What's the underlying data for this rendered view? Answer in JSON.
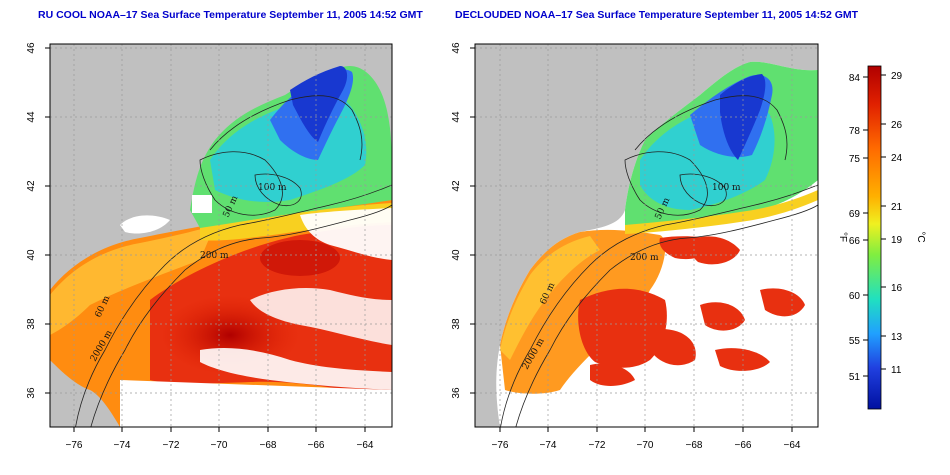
{
  "panels": [
    {
      "title": "RU COOL NOAA–17 Sea Surface Temperature September 11, 2005 14:52 GMT",
      "contour_labels": [
        "100 m",
        "50 m",
        "200 m",
        "60 m",
        "2000 m"
      ]
    },
    {
      "title": "DECLOUDED NOAA–17 Sea Surface Temperature September 11, 2005 14:52 GMT",
      "contour_labels": [
        "100 m",
        "50 m",
        "200 m",
        "60 m",
        "2000 m"
      ]
    }
  ],
  "axes": {
    "x_ticks": [
      "−76",
      "−74",
      "−72",
      "−70",
      "−68",
      "−66",
      "−64"
    ],
    "y_ticks": [
      "46",
      "44",
      "42",
      "40",
      "38",
      "36"
    ],
    "lon_range": [
      -77,
      -63
    ],
    "lat_range": [
      35,
      46
    ]
  },
  "colorbar": {
    "fahrenheit_label": "°F",
    "celsius_label": "°C",
    "fahrenheit_ticks": [
      "84",
      "78",
      "75",
      "69",
      "66",
      "60",
      "55",
      "51"
    ],
    "celsius_ticks": [
      "29",
      "26",
      "24",
      "21",
      "19",
      "16",
      "13",
      "11"
    ],
    "colors": [
      "#b00000",
      "#e02000",
      "#ff6a00",
      "#ffb000",
      "#f0f020",
      "#80ee40",
      "#20e0c0",
      "#20a0ff",
      "#2040e0",
      "#0010a0"
    ]
  },
  "colors": {
    "land": "#c0c0c0",
    "cloud_white": "#ffffff",
    "grid": "#9a9a9a",
    "title": "#0000cc"
  }
}
